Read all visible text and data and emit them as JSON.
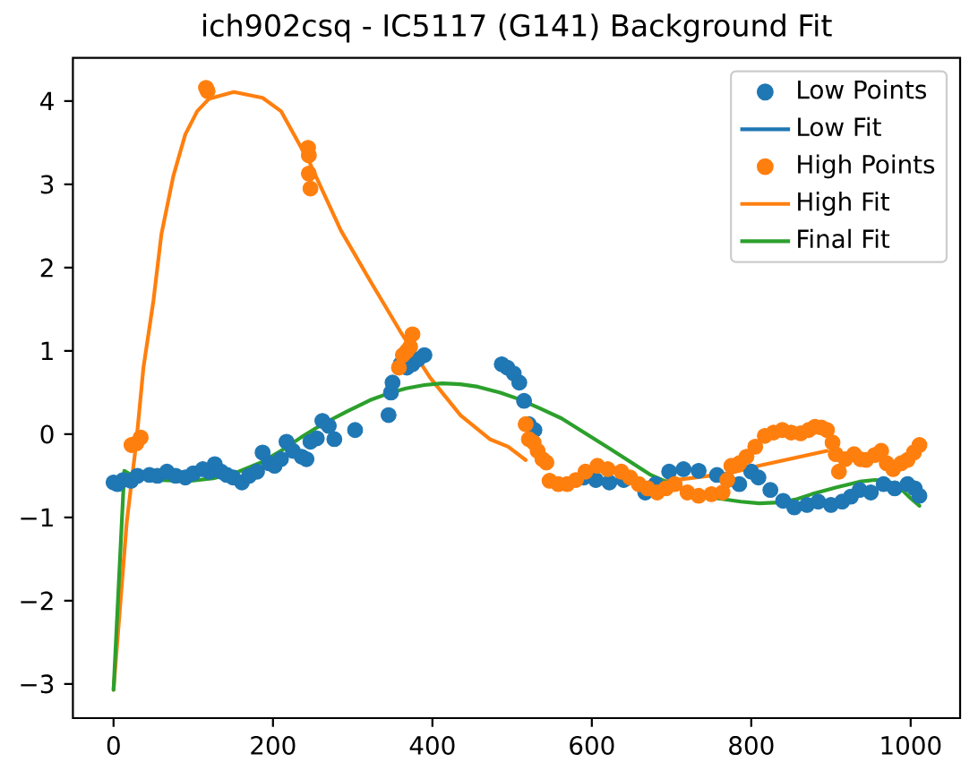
{
  "chart_data": {
    "type": "scatter",
    "title": "ich902csq - IC5117 (G141) Background Fit",
    "xlim": [
      -51,
      1062
    ],
    "ylim": [
      -3.41,
      4.52
    ],
    "xticks": [
      0,
      200,
      400,
      600,
      800,
      1000
    ],
    "yticks": [
      {
        "value": -3,
        "label": "−3"
      },
      {
        "value": -2,
        "label": "−2"
      },
      {
        "value": -1,
        "label": "−1"
      },
      0,
      1,
      2,
      3,
      4
    ],
    "legend": "top right",
    "marker": "circle",
    "series": [
      {
        "name": "Low Points",
        "color": "#1f77b4",
        "x": [
          0,
          5,
          12,
          22,
          30,
          45,
          55,
          67,
          78,
          90,
          100,
          112,
          120,
          127,
          135,
          142,
          150,
          161,
          170,
          180,
          187,
          195,
          202,
          210,
          217,
          225,
          236,
          242,
          247,
          255,
          262,
          270,
          277,
          303,
          345,
          348,
          350,
          360,
          368,
          375,
          382,
          390,
          487,
          494,
          502,
          509,
          515,
          521,
          528,
          590,
          605,
          622,
          640,
          667,
          680,
          697,
          715,
          734,
          757,
          770,
          785,
          800,
          809,
          824,
          840,
          854,
          870,
          884,
          900,
          914,
          925,
          936,
          950,
          966,
          980,
          996,
          1005,
          1011
        ],
        "values": [
          -0.58,
          -0.6,
          -0.55,
          -0.56,
          -0.5,
          -0.49,
          -0.5,
          -0.45,
          -0.5,
          -0.52,
          -0.47,
          -0.42,
          -0.45,
          -0.36,
          -0.45,
          -0.49,
          -0.52,
          -0.58,
          -0.5,
          -0.45,
          -0.22,
          -0.35,
          -0.38,
          -0.3,
          -0.09,
          -0.2,
          -0.27,
          -0.3,
          -0.09,
          -0.05,
          0.16,
          0.1,
          -0.06,
          0.05,
          0.23,
          0.5,
          0.62,
          0.84,
          0.8,
          0.84,
          0.9,
          0.95,
          0.84,
          0.8,
          0.73,
          0.62,
          0.4,
          0.12,
          0.05,
          -0.52,
          -0.55,
          -0.58,
          -0.55,
          -0.7,
          -0.6,
          -0.45,
          -0.42,
          -0.44,
          -0.49,
          -0.55,
          -0.6,
          -0.45,
          -0.52,
          -0.67,
          -0.8,
          -0.88,
          -0.85,
          -0.81,
          -0.85,
          -0.81,
          -0.75,
          -0.67,
          -0.7,
          -0.6,
          -0.65,
          -0.6,
          -0.65,
          -0.74
        ]
      },
      {
        "name": "Low Fit",
        "type": "line",
        "color": "#1f77b4",
        "marker": "none"
      },
      {
        "name": "High Points",
        "color": "#ff7f0e",
        "x": [
          22.5,
          28.5,
          34,
          116,
          118,
          244,
          245,
          245,
          247,
          358,
          363,
          368,
          372,
          375,
          517,
          521,
          527,
          532,
          538,
          543,
          547,
          558,
          569,
          580,
          592,
          607,
          620,
          637,
          648,
          659,
          670,
          682,
          693,
          704,
          720,
          734,
          750,
          764,
          770,
          775,
          785,
          794,
          805,
          817,
          828,
          839,
          850,
          862,
          872,
          880,
          888,
          895,
          902,
          906,
          910,
          918,
          929,
          937,
          944,
          955,
          963,
          970,
          978,
          988,
          996,
          1004,
          1011
        ],
        "values": [
          -0.13,
          -0.11,
          -0.04,
          4.16,
          4.12,
          3.44,
          3.35,
          3.13,
          2.95,
          0.8,
          0.95,
          1.0,
          1.05,
          1.2,
          0.12,
          -0.06,
          -0.1,
          -0.2,
          -0.3,
          -0.34,
          -0.56,
          -0.6,
          -0.6,
          -0.55,
          -0.45,
          -0.38,
          -0.42,
          -0.45,
          -0.52,
          -0.6,
          -0.65,
          -0.7,
          -0.65,
          -0.6,
          -0.7,
          -0.74,
          -0.72,
          -0.7,
          -0.55,
          -0.38,
          -0.35,
          -0.27,
          -0.15,
          -0.02,
          0.02,
          0.05,
          0.02,
          0.01,
          0.05,
          0.09,
          0.08,
          0.05,
          -0.1,
          -0.24,
          -0.45,
          -0.3,
          -0.24,
          -0.3,
          -0.31,
          -0.25,
          -0.2,
          -0.35,
          -0.42,
          -0.35,
          -0.31,
          -0.22,
          -0.13
        ]
      },
      {
        "name": "High Fit",
        "type": "line",
        "color": "#ff7f0e",
        "marker": "none",
        "x": [
          0,
          16.5,
          28.5,
          37.5,
          50,
          60,
          75,
          90,
          105,
          120,
          151,
          187,
          210,
          247,
          285,
          322,
          360,
          397,
          435,
          472,
          495,
          517,
          600,
          689,
          772,
          809,
          895
        ],
        "values": [
          -3.07,
          -1.06,
          -0.1,
          0.8,
          1.6,
          2.4,
          3.1,
          3.6,
          3.88,
          4.03,
          4.11,
          4.04,
          3.88,
          3.24,
          2.45,
          1.84,
          1.23,
          0.68,
          0.23,
          -0.06,
          -0.15,
          -0.31,
          null,
          -0.57,
          -0.47,
          -0.38,
          -0.2
        ]
      },
      {
        "name": "Final Fit",
        "type": "line",
        "color": "#2ca02c",
        "marker": "none",
        "x": [
          0,
          13.5,
          22.5,
          40,
          60,
          80,
          97.5,
          125,
          157,
          185,
          210,
          235,
          262,
          292,
          322,
          345,
          367,
          390,
          412,
          435,
          457,
          485,
          509,
          535,
          562,
          592,
          622,
          648,
          674,
          700,
          727,
          757,
          787,
          810,
          835,
          857,
          876,
          906,
          936,
          955,
          970,
          985,
          1000,
          1011
        ],
        "values": [
          -3.07,
          -0.44,
          -0.49,
          -0.52,
          -0.55,
          -0.56,
          -0.56,
          -0.53,
          -0.45,
          -0.34,
          -0.2,
          -0.04,
          0.12,
          0.27,
          0.41,
          0.49,
          0.55,
          0.59,
          0.61,
          0.6,
          0.57,
          0.5,
          0.42,
          0.31,
          0.19,
          0.01,
          -0.17,
          -0.33,
          -0.49,
          -0.6,
          -0.7,
          -0.77,
          -0.81,
          -0.83,
          -0.82,
          -0.78,
          -0.72,
          -0.64,
          -0.57,
          -0.55,
          -0.56,
          -0.63,
          -0.77,
          -0.86
        ]
      }
    ]
  }
}
